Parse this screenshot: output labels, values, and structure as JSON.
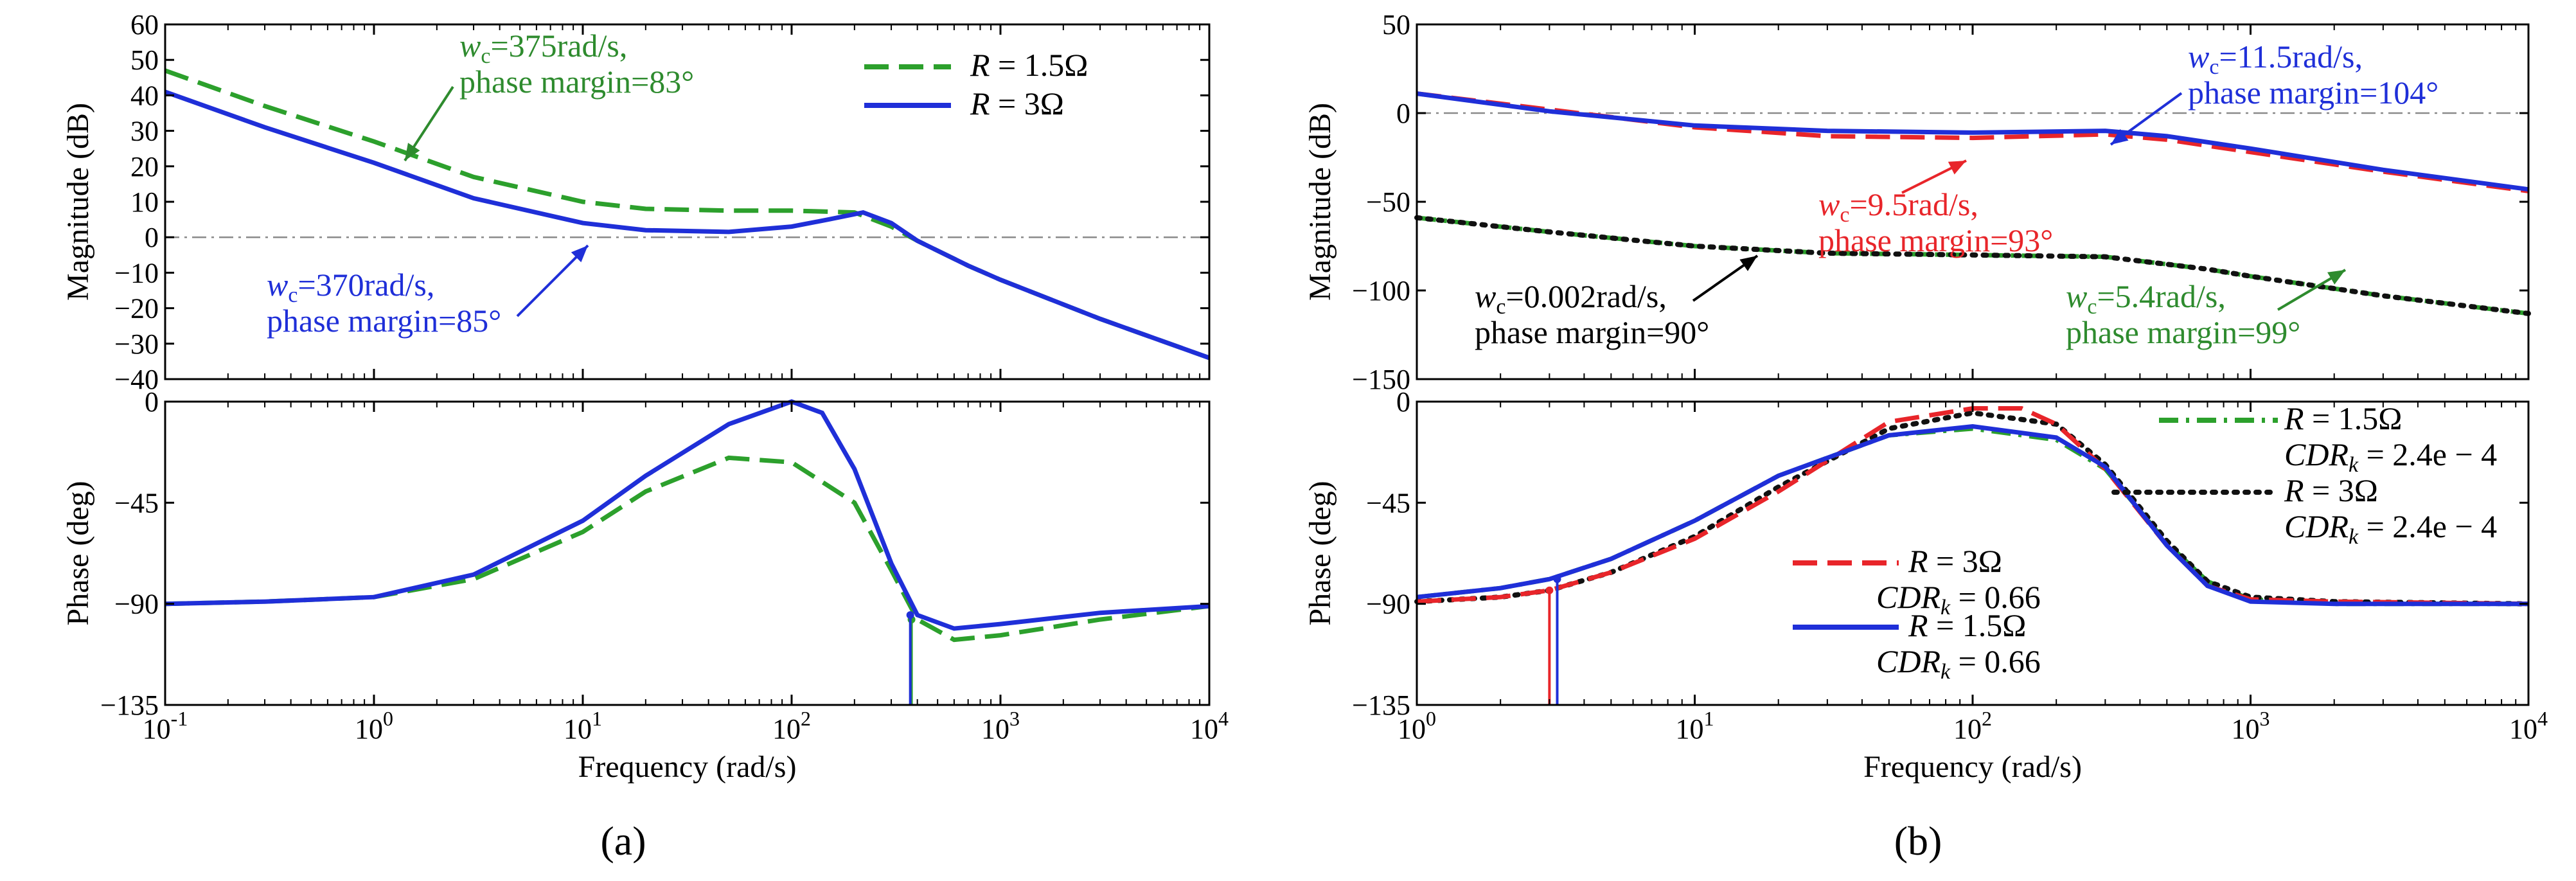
{
  "figure": {
    "panel_a_label": "(a)",
    "panel_b_label": "(b)"
  },
  "chart_data": [
    {
      "type": "line",
      "panel": "a",
      "subplot": "magnitude",
      "xscale": "log",
      "xlim": [
        0.1,
        10000
      ],
      "ylim": [
        -40,
        60
      ],
      "yticks": [
        -40,
        -30,
        -20,
        -10,
        0,
        10,
        20,
        30,
        40,
        50,
        60
      ],
      "xticks": [
        0.1,
        1,
        10,
        100,
        1000,
        10000
      ],
      "xlabel": "",
      "ylabel": "Magnitude (dB)",
      "legend": {
        "position": "top-right",
        "entries": [
          {
            "base": "R",
            "eq": " = 1.5Ω"
          },
          {
            "base": "R",
            "eq": " = 3Ω"
          }
        ]
      },
      "series": [
        {
          "name": "R = 1.5Ω",
          "color": "#2ca02c",
          "style": "dashed",
          "points": [
            [
              0.1,
              47
            ],
            [
              0.3,
              37
            ],
            [
              1,
              27
            ],
            [
              3,
              17
            ],
            [
              10,
              10
            ],
            [
              20,
              8
            ],
            [
              50,
              7.5
            ],
            [
              100,
              7.5
            ],
            [
              200,
              7
            ],
            [
              300,
              3
            ],
            [
              400,
              -1
            ],
            [
              700,
              -8
            ],
            [
              1000,
              -12
            ],
            [
              3000,
              -23
            ],
            [
              10000,
              -34
            ]
          ]
        },
        {
          "name": "R = 3Ω",
          "color": "#1f2fd8",
          "style": "solid",
          "points": [
            [
              0.1,
              41
            ],
            [
              0.3,
              31
            ],
            [
              1,
              21
            ],
            [
              3,
              11
            ],
            [
              10,
              4
            ],
            [
              20,
              2
            ],
            [
              50,
              1.5
            ],
            [
              100,
              3
            ],
            [
              150,
              5
            ],
            [
              220,
              7
            ],
            [
              300,
              4
            ],
            [
              400,
              -1
            ],
            [
              700,
              -8
            ],
            [
              1000,
              -12
            ],
            [
              3000,
              -23
            ],
            [
              10000,
              -34
            ]
          ]
        }
      ],
      "annotations": [
        {
          "base": "w",
          "sub": "c",
          "rest": "=375rad/s,",
          "line2": "phase margin=83°",
          "color": "#2e8b2e"
        },
        {
          "base": "w",
          "sub": "c",
          "rest": "=370rad/s,",
          "line2": "phase margin=85°",
          "color": "#1f2fd8"
        }
      ]
    },
    {
      "type": "line",
      "panel": "a",
      "subplot": "phase",
      "xscale": "log",
      "xlim": [
        0.1,
        10000
      ],
      "ylim": [
        -135,
        0
      ],
      "yticks": [
        -135,
        -90,
        -45,
        0
      ],
      "xticks": [
        0.1,
        1,
        10,
        100,
        1000,
        10000
      ],
      "xlabel": "Frequency  (rad/s)",
      "ylabel": "Phase (deg)",
      "series": [
        {
          "name": "R = 1.5Ω",
          "color": "#2ca02c",
          "style": "dashed",
          "points": [
            [
              0.1,
              -90
            ],
            [
              0.3,
              -89
            ],
            [
              1,
              -87
            ],
            [
              3,
              -79
            ],
            [
              10,
              -58
            ],
            [
              20,
              -40
            ],
            [
              50,
              -25
            ],
            [
              100,
              -27
            ],
            [
              200,
              -45
            ],
            [
              300,
              -75
            ],
            [
              400,
              -97
            ],
            [
              600,
              -106
            ],
            [
              1000,
              -104
            ],
            [
              3000,
              -97
            ],
            [
              10000,
              -91
            ]
          ]
        },
        {
          "name": "R = 3Ω",
          "color": "#1f2fd8",
          "style": "solid",
          "points": [
            [
              0.1,
              -90
            ],
            [
              0.3,
              -89
            ],
            [
              1,
              -87
            ],
            [
              3,
              -77
            ],
            [
              10,
              -53
            ],
            [
              20,
              -33
            ],
            [
              50,
              -10
            ],
            [
              100,
              0
            ],
            [
              140,
              -5
            ],
            [
              200,
              -30
            ],
            [
              300,
              -72
            ],
            [
              400,
              -95
            ],
            [
              600,
              -101
            ],
            [
              1000,
              -99
            ],
            [
              3000,
              -94
            ],
            [
              10000,
              -91
            ]
          ]
        }
      ],
      "stems": [
        {
          "x": 375,
          "from": -97,
          "color": "#2ca02c"
        },
        {
          "x": 370,
          "from": -95,
          "color": "#1f2fd8"
        }
      ]
    },
    {
      "type": "line",
      "panel": "b",
      "subplot": "magnitude",
      "xscale": "log",
      "xlim": [
        1,
        10000
      ],
      "ylim": [
        -150,
        50
      ],
      "yticks": [
        -150,
        -100,
        -50,
        0,
        50
      ],
      "xticks": [
        1,
        10,
        100,
        1000,
        10000
      ],
      "xlabel": "",
      "ylabel": "Magnitude (dB)",
      "series": [
        {
          "name": "R = 3Ω, CDRk = 0.66",
          "color": "#e8252a",
          "style": "dashed",
          "points": [
            [
              1,
              11
            ],
            [
              3,
              2
            ],
            [
              10,
              -8
            ],
            [
              30,
              -13
            ],
            [
              100,
              -14
            ],
            [
              300,
              -12
            ],
            [
              500,
              -15
            ],
            [
              1000,
              -22
            ],
            [
              3000,
              -33
            ],
            [
              10000,
              -44
            ]
          ]
        },
        {
          "name": "R = 1.5Ω, CDRk = 0.66",
          "color": "#1f2fd8",
          "style": "solid",
          "points": [
            [
              1,
              11
            ],
            [
              3,
              1
            ],
            [
              10,
              -7
            ],
            [
              30,
              -10
            ],
            [
              100,
              -11
            ],
            [
              300,
              -10
            ],
            [
              500,
              -13
            ],
            [
              1000,
              -20
            ],
            [
              3000,
              -32
            ],
            [
              10000,
              -43
            ]
          ]
        },
        {
          "name": "R = 1.5Ω, CDRk = 2.4e−4",
          "color": "#2ca02c",
          "style": "dashdot",
          "points": [
            [
              1,
              -59
            ],
            [
              3,
              -67
            ],
            [
              10,
              -75
            ],
            [
              30,
              -79
            ],
            [
              100,
              -80
            ],
            [
              300,
              -81
            ],
            [
              700,
              -88
            ],
            [
              1000,
              -92
            ],
            [
              3000,
              -103
            ],
            [
              10000,
              -113
            ]
          ]
        },
        {
          "name": "R = 3Ω, CDRk = 2.4e−4",
          "color": "#111111",
          "style": "dotted",
          "points": [
            [
              1,
              -59
            ],
            [
              3,
              -67
            ],
            [
              10,
              -75
            ],
            [
              30,
              -79
            ],
            [
              100,
              -80
            ],
            [
              300,
              -81
            ],
            [
              700,
              -88
            ],
            [
              1000,
              -92
            ],
            [
              3000,
              -103
            ],
            [
              10000,
              -113
            ]
          ]
        }
      ],
      "annotations": [
        {
          "base": "w",
          "sub": "c",
          "rest": "=11.5rad/s,",
          "line2": "phase margin=104°",
          "color": "#1f2fd8"
        },
        {
          "base": "w",
          "sub": "c",
          "rest": "=9.5rad/s,",
          "line2": "phase margin=93°",
          "color": "#e8252a"
        },
        {
          "base": "w",
          "sub": "c",
          "rest": "=0.002rad/s,",
          "line2": "phase margin=90°",
          "color": "#000000"
        },
        {
          "base": "w",
          "sub": "c",
          "rest": "=5.4rad/s,",
          "line2": "phase margin=99°",
          "color": "#2e8b2e"
        }
      ]
    },
    {
      "type": "line",
      "panel": "b",
      "subplot": "phase",
      "xscale": "log",
      "xlim": [
        1,
        10000
      ],
      "ylim": [
        -135,
        0
      ],
      "yticks": [
        -135,
        -90,
        -45,
        0
      ],
      "xticks": [
        1,
        10,
        100,
        1000,
        10000
      ],
      "xlabel": "Frequency  (rad/s)",
      "ylabel": "Phase (deg)",
      "legend": {
        "entries": [
          {
            "base": "R",
            "eq": " = 1.5Ω",
            "cdr_base": "CDR",
            "cdr_sub": "k",
            "cdr_eq": " = 2.4e − 4"
          },
          {
            "base": "R",
            "eq": " = 3Ω",
            "cdr_base": "CDR",
            "cdr_sub": "k",
            "cdr_eq": " = 2.4e − 4"
          },
          {
            "base": "R",
            "eq": " = 3Ω",
            "cdr_base": "CDR",
            "cdr_sub": "k",
            "cdr_eq": " = 0.66"
          },
          {
            "base": "R",
            "eq": " = 1.5Ω",
            "cdr_base": "CDR",
            "cdr_sub": "k",
            "cdr_eq": " = 0.66"
          }
        ]
      },
      "series": [
        {
          "name": "R = 1.5Ω, CDRk = 2.4e−4",
          "color": "#2ca02c",
          "style": "dashdot",
          "points": [
            [
              1,
              -87
            ],
            [
              2,
              -83
            ],
            [
              3,
              -79
            ],
            [
              5,
              -70
            ],
            [
              10,
              -53
            ],
            [
              20,
              -33
            ],
            [
              50,
              -15
            ],
            [
              100,
              -12
            ],
            [
              200,
              -17
            ],
            [
              300,
              -30
            ],
            [
              500,
              -63
            ],
            [
              700,
              -80
            ],
            [
              1000,
              -88
            ],
            [
              2000,
              -90
            ],
            [
              10000,
              -90
            ]
          ]
        },
        {
          "name": "R = 3Ω, CDRk = 2.4e−4",
          "color": "#111111",
          "style": "dotted",
          "points": [
            [
              1,
              -89
            ],
            [
              2,
              -87
            ],
            [
              3,
              -84
            ],
            [
              5,
              -76
            ],
            [
              10,
              -60
            ],
            [
              20,
              -38
            ],
            [
              50,
              -12
            ],
            [
              100,
              -5
            ],
            [
              200,
              -10
            ],
            [
              300,
              -28
            ],
            [
              500,
              -62
            ],
            [
              700,
              -80
            ],
            [
              1000,
              -87
            ],
            [
              2000,
              -89
            ],
            [
              10000,
              -90
            ]
          ]
        },
        {
          "name": "R = 3Ω, CDRk = 0.66",
          "color": "#e8252a",
          "style": "dashed",
          "points": [
            [
              1,
              -89
            ],
            [
              2,
              -87
            ],
            [
              3,
              -84
            ],
            [
              5,
              -76
            ],
            [
              10,
              -61
            ],
            [
              20,
              -40
            ],
            [
              50,
              -9
            ],
            [
              100,
              -3
            ],
            [
              150,
              -3
            ],
            [
              200,
              -10
            ],
            [
              300,
              -30
            ],
            [
              500,
              -64
            ],
            [
              700,
              -82
            ],
            [
              1000,
              -88
            ],
            [
              2000,
              -89
            ],
            [
              10000,
              -90
            ]
          ]
        },
        {
          "name": "R = 1.5Ω, CDRk = 0.66",
          "color": "#1f2fd8",
          "style": "solid",
          "points": [
            [
              1,
              -87
            ],
            [
              2,
              -83
            ],
            [
              3,
              -79
            ],
            [
              5,
              -70
            ],
            [
              10,
              -53
            ],
            [
              20,
              -33
            ],
            [
              50,
              -15
            ],
            [
              100,
              -11
            ],
            [
              200,
              -16
            ],
            [
              300,
              -29
            ],
            [
              500,
              -64
            ],
            [
              700,
              -82
            ],
            [
              1000,
              -89
            ],
            [
              2000,
              -90
            ],
            [
              10000,
              -90
            ]
          ]
        }
      ],
      "stems": [
        {
          "x": 3.0,
          "from": -84,
          "color": "#e8252a"
        },
        {
          "x": 3.2,
          "from": -79,
          "color": "#1f2fd8"
        }
      ]
    }
  ]
}
